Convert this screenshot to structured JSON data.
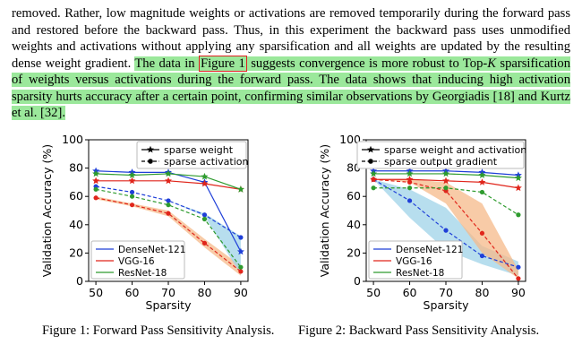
{
  "paragraph": {
    "plain_before": "removed. Rather, low magnitude weights or activations are removed temporarily during the forward pass and restored before the backward pass. Thus, in this experiment the backward pass uses unmodified weights and activations without applying any sparsification and all weights are updated by the resulting dense weight gradient.",
    "hl_pre": "The data in",
    "figure_ref": "Figure 1",
    "hl_post_a": "suggests convergence is more robust to Top-",
    "hl_k": "K",
    "hl_post_b": "sparsification of weights versus activations during the forward pass. The data shows that inducing high activation sparsity hurts accuracy after a certain point, confirming similar observations by Georgiadis [18] and Kurtz et al. [32]."
  },
  "figure1_caption": "Figure 1: Forward Pass Sensitivity Analysis.",
  "figure2_caption": "Figure 2: Backward Pass Sensitivity Analysis.",
  "colors": {
    "densenet": "#1f3fd8",
    "vgg": "#e0251b",
    "resnet": "#2e9b2e",
    "highlight": "#9be89b",
    "band_blue": "#9fd3e8",
    "band_orange": "#f5b98a"
  },
  "chart_data": [
    {
      "type": "line",
      "xlabel": "Sparsity",
      "ylabel": "Validation Accuracy (%)",
      "x": [
        50,
        60,
        70,
        80,
        90
      ],
      "xticks": [
        "50",
        "60",
        "70",
        "80",
        "90"
      ],
      "yticks": [
        "0",
        "20",
        "40",
        "60",
        "80",
        "100"
      ],
      "xlim": [
        48,
        92
      ],
      "ylim": [
        0,
        100
      ],
      "style_legend": [
        {
          "label": "sparse weight",
          "marker": "star",
          "dash": "solid"
        },
        {
          "label": "sparse activation",
          "marker": "circle",
          "dash": "dashed"
        }
      ],
      "model_legend": [
        {
          "label": "DenseNet-121",
          "color": "#1f3fd8"
        },
        {
          "label": "VGG-16",
          "color": "#e0251b"
        },
        {
          "label": "ResNet-18",
          "color": "#2e9b2e"
        }
      ],
      "series": [
        {
          "model": "DenseNet-121",
          "style": "weight",
          "color": "#1f3fd8",
          "values": [
            78,
            77,
            77,
            70,
            21
          ]
        },
        {
          "model": "VGG-16",
          "style": "weight",
          "color": "#e0251b",
          "values": [
            71,
            71,
            71,
            69,
            65
          ]
        },
        {
          "model": "ResNet-18",
          "style": "weight",
          "color": "#2e9b2e",
          "values": [
            76,
            75,
            76,
            74,
            65
          ]
        },
        {
          "model": "DenseNet-121",
          "style": "activation",
          "color": "#1f3fd8",
          "values": [
            67,
            63,
            57,
            47,
            31
          ]
        },
        {
          "model": "VGG-16",
          "style": "activation",
          "color": "#e0251b",
          "values": [
            59,
            54,
            48,
            27,
            7
          ]
        },
        {
          "model": "ResNet-18",
          "style": "activation",
          "color": "#2e9b2e",
          "values": [
            65,
            60,
            54,
            44,
            10
          ]
        }
      ],
      "bands": [
        {
          "color": "#f5b98a",
          "lower": [
            58,
            53,
            46,
            24,
            4
          ],
          "upper": [
            60,
            55,
            50,
            30,
            11
          ]
        },
        {
          "color": "#9fd3e8",
          "lower": [
            67,
            63,
            57,
            46,
            5
          ],
          "upper": [
            67,
            63,
            57,
            48,
            32
          ]
        }
      ]
    },
    {
      "type": "line",
      "xlabel": "Sparsity",
      "ylabel": "Validation Accuracy (%)",
      "x": [
        50,
        60,
        70,
        80,
        90
      ],
      "xticks": [
        "50",
        "60",
        "70",
        "80",
        "90"
      ],
      "yticks": [
        "0",
        "20",
        "40",
        "60",
        "80",
        "100"
      ],
      "xlim": [
        48,
        92
      ],
      "ylim": [
        0,
        100
      ],
      "style_legend": [
        {
          "label": "sparse weight and activation",
          "marker": "star",
          "dash": "solid"
        },
        {
          "label": "sparse output gradient",
          "marker": "circle",
          "dash": "dashed"
        }
      ],
      "model_legend": [
        {
          "label": "DenseNet-121",
          "color": "#1f3fd8"
        },
        {
          "label": "VGG-16",
          "color": "#e0251b"
        },
        {
          "label": "ResNet-18",
          "color": "#2e9b2e"
        }
      ],
      "series": [
        {
          "model": "DenseNet-121",
          "style": "weight",
          "color": "#1f3fd8",
          "values": [
            78,
            78,
            78,
            77,
            75
          ]
        },
        {
          "model": "VGG-16",
          "style": "weight",
          "color": "#e0251b",
          "values": [
            72,
            72,
            71,
            70,
            66
          ]
        },
        {
          "model": "ResNet-18",
          "style": "weight",
          "color": "#2e9b2e",
          "values": [
            76,
            76,
            76,
            75,
            73
          ]
        },
        {
          "model": "DenseNet-121",
          "style": "activation",
          "color": "#1f3fd8",
          "values": [
            72,
            57,
            36,
            18,
            10
          ]
        },
        {
          "model": "VGG-16",
          "style": "activation",
          "color": "#e0251b",
          "values": [
            72,
            70,
            64,
            34,
            2
          ]
        },
        {
          "model": "ResNet-18",
          "style": "activation",
          "color": "#2e9b2e",
          "values": [
            66,
            66,
            66,
            63,
            47
          ]
        }
      ],
      "bands": [
        {
          "color": "#9fd3e8",
          "lower": [
            72,
            45,
            22,
            12,
            4
          ],
          "upper": [
            72,
            65,
            52,
            25,
            14
          ]
        },
        {
          "color": "#f5b98a",
          "lower": [
            72,
            70,
            55,
            20,
            2
          ],
          "upper": [
            72,
            72,
            70,
            55,
            8
          ]
        }
      ]
    }
  ]
}
